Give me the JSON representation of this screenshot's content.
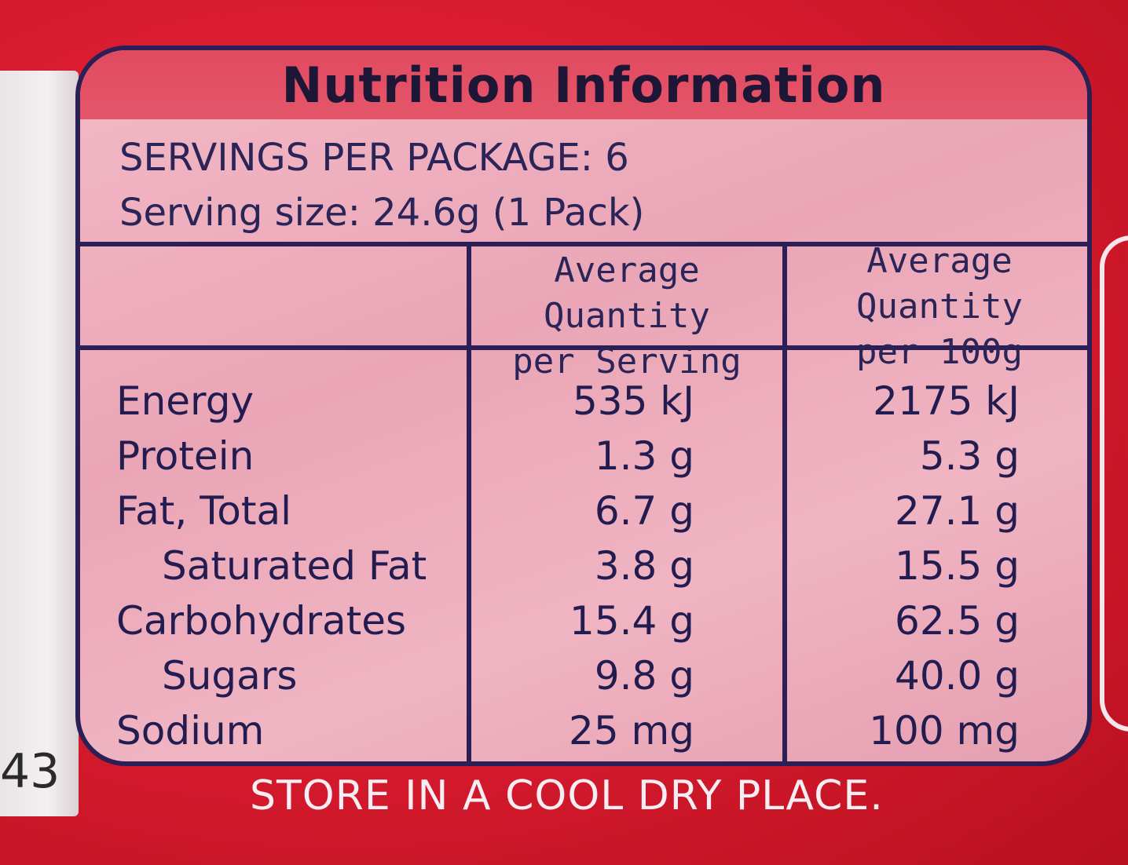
{
  "side_number": "43",
  "panel": {
    "title": "Nutrition Information",
    "servings_per_package": "SERVINGS PER PACKAGE: 6",
    "serving_size": "Serving size: 24.6g (1 Pack)",
    "col_header_serving": [
      "Average Quantity",
      "per Serving"
    ],
    "col_header_100g": [
      "Average Quantity",
      "per 100g"
    ],
    "rows": [
      {
        "label": "Energy",
        "per_serving": "535 kJ",
        "per_100g": "2175 kJ"
      },
      {
        "label": "Protein",
        "per_serving": "1.3 g",
        "per_100g": "5.3 g"
      },
      {
        "label": "Fat, Total",
        "per_serving": "6.7 g",
        "per_100g": "27.1 g"
      },
      {
        "label": "Saturated Fat",
        "per_serving": "3.8 g",
        "per_100g": "15.5 g"
      },
      {
        "label": "Carbohydrates",
        "per_serving": "15.4 g",
        "per_100g": "62.5 g"
      },
      {
        "label": "Sugars",
        "per_serving": "9.8 g",
        "per_100g": "40.0 g"
      },
      {
        "label": "Sodium",
        "per_serving": "25 mg",
        "per_100g": "100 mg"
      }
    ]
  },
  "footer": "STORE IN A COOL DRY PLACE."
}
